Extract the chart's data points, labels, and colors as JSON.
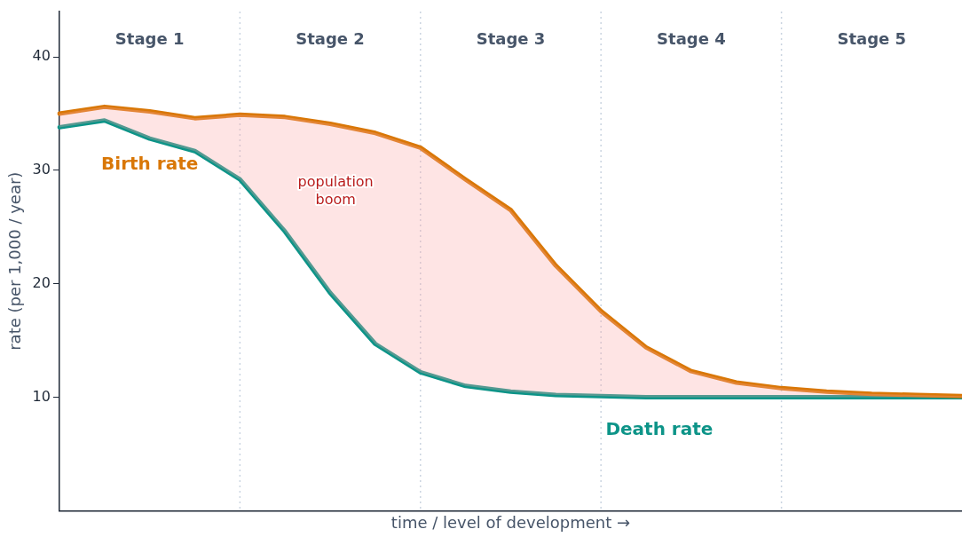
{
  "chart_data": {
    "type": "line",
    "xlabel": "time / level of development →",
    "ylabel": "rate (per 1,000 / year)",
    "categories": [
      null,
      null,
      null,
      null,
      null,
      null,
      null,
      null,
      null,
      null,
      null,
      null,
      null,
      null,
      null,
      null,
      null,
      null,
      null,
      null,
      null
    ],
    "series": [
      {
        "name": "Birth rate",
        "color": "#d97706",
        "values": [
          35.0,
          35.6,
          35.2,
          34.6,
          34.9,
          34.7,
          34.1,
          33.3,
          32.0,
          29.2,
          26.5,
          21.6,
          17.6,
          14.4,
          12.3,
          11.3,
          10.8,
          10.5,
          10.3,
          10.2,
          10.1
        ],
        "lower": [
          33.8,
          34.4,
          32.8,
          31.7,
          29.2,
          24.6,
          19.2,
          14.7,
          12.2,
          11.0,
          10.5,
          10.2,
          10.1,
          10.0,
          10.0,
          10.0,
          10.0,
          10.0,
          10.0,
          10.0,
          10.0
        ],
        "upper": [
          35.0,
          35.6,
          35.2,
          34.6,
          34.9,
          34.7,
          34.1,
          33.3,
          32.0,
          29.2,
          26.5,
          21.6,
          17.6,
          14.4,
          12.3,
          11.3,
          10.8,
          10.5,
          10.3,
          10.2,
          10.1
        ]
      },
      {
        "name": "Death rate",
        "color": "#0d9488",
        "values": [
          33.8,
          34.4,
          32.8,
          31.7,
          29.2,
          24.6,
          19.2,
          14.7,
          12.2,
          11.0,
          10.5,
          10.2,
          10.1,
          10.0,
          10.0,
          10.0,
          10.0,
          10.0,
          10.0,
          10.0,
          10.0
        ]
      }
    ],
    "ylim": [
      0,
      44
    ],
    "yticks": [
      10,
      20,
      30,
      40
    ],
    "tick_labels": "y",
    "grid": "x",
    "legend": false,
    "line_style": "solid",
    "annotations": [
      "Stage 1",
      "Stage 2",
      "Stage 3",
      "Stage 4",
      "Stage 5",
      "population\nboom"
    ]
  }
}
